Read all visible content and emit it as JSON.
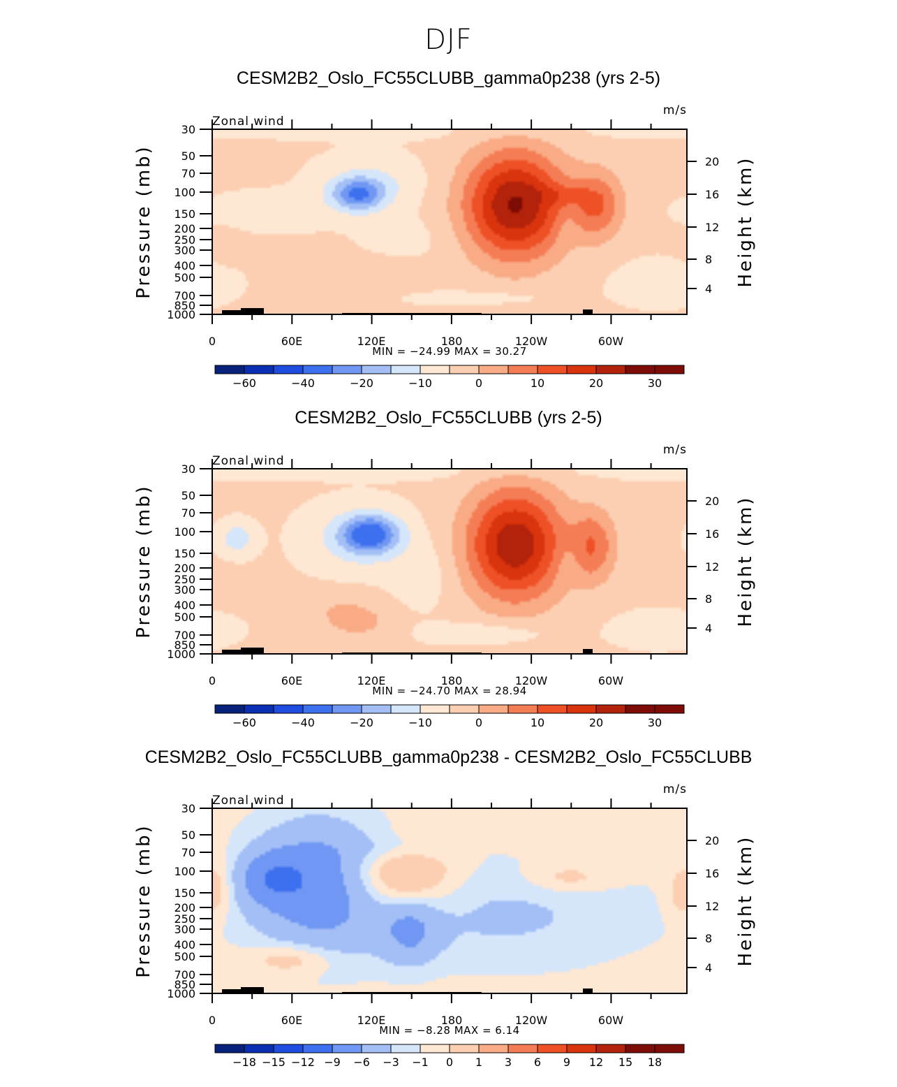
{
  "page_title": "DJF",
  "colors": {
    "neg": [
      "#08217a",
      "#0b2fb3",
      "#1f4de0",
      "#3d70ef",
      "#6f97f3",
      "#a3bff6",
      "#d5e6fb"
    ],
    "pos": [
      "#fee7d3",
      "#fccfb2",
      "#f9ab86",
      "#f57d55",
      "#ef5127",
      "#d9340d",
      "#b3220a",
      "#7e0c06"
    ]
  },
  "chart_data": [
    {
      "type": "heatmap",
      "title": "CESM2B2_Oslo_FC55CLUBB_gamma0p238 (yrs 2-5)",
      "left_label": "Zonal wind",
      "right_label": "m/s",
      "ylabel": "Pressure (mb)",
      "ylabel_right": "Height (km)",
      "yticks": [
        "30",
        "50",
        "70",
        "100",
        "150",
        "200",
        "250",
        "300",
        "400",
        "500",
        "700",
        "850",
        "1000"
      ],
      "yticks_right": [
        "20",
        "16",
        "12",
        "8",
        "4"
      ],
      "xticks": [
        "0",
        "60E",
        "120E",
        "180",
        "120W",
        "60W"
      ],
      "min": "-24.99",
      "max": "30.27",
      "stats_text": "MIN = −24.99   MAX =   30.27",
      "colorbar_labels": [
        "−60",
        "−40",
        "−20",
        "−10",
        "0",
        "10",
        "20",
        "30"
      ],
      "features": [
        {
          "lon": 150,
          "level": 7.0,
          "val": -2.0,
          "sx": 26,
          "sy": 1.0
        },
        {
          "lon": 45,
          "level": 5.3,
          "val": -3.5,
          "sx": 30,
          "sy": 0.8
        },
        {
          "lon": 110,
          "level": 4.2,
          "val": -18,
          "sx": 14,
          "sy": 0.75
        },
        {
          "lon": 120,
          "level": 3.5,
          "val": -6,
          "sx": 26,
          "sy": 1.2
        },
        {
          "lon": 200,
          "level": 11.0,
          "val": -4,
          "sx": 35,
          "sy": 0.3
        },
        {
          "lon": 230,
          "level": 4.9,
          "val": 30,
          "sx": 27,
          "sy": 2.5
        },
        {
          "lon": 293,
          "level": 4.9,
          "val": 14,
          "sx": 14,
          "sy": 1.6
        },
        {
          "lon": 110,
          "level": 9.8,
          "val": 3,
          "sx": 30,
          "sy": 0.8
        },
        {
          "lon": 10,
          "level": 7.6,
          "val": 2,
          "sx": 10,
          "sy": 0.7
        },
        {
          "lon": 265,
          "level": 4.2,
          "val": 5,
          "sx": 14,
          "sy": 0.5
        },
        {
          "lon": 270,
          "level": 6.2,
          "val": -3,
          "sx": 7,
          "sy": 1.0
        },
        {
          "lon": 340,
          "level": 10.0,
          "val": -3,
          "sx": 25,
          "sy": 1.0
        },
        {
          "lon": 180,
          "level": 0.1,
          "val": -1.5,
          "sx": 170,
          "sy": 0.4
        }
      ]
    },
    {
      "type": "heatmap",
      "title": "CESM2B2_Oslo_FC55CLUBB (yrs 2-5)",
      "left_label": "Zonal wind",
      "right_label": "m/s",
      "ylabel": "Pressure (mb)",
      "ylabel_right": "Height (km)",
      "yticks": [
        "30",
        "50",
        "70",
        "100",
        "150",
        "200",
        "250",
        "300",
        "400",
        "500",
        "700",
        "850",
        "1000"
      ],
      "yticks_right": [
        "20",
        "16",
        "12",
        "8",
        "4"
      ],
      "xticks": [
        "0",
        "60E",
        "120E",
        "180",
        "120W",
        "60W"
      ],
      "min": "-24.70",
      "max": "28.94",
      "stats_text": "MIN = −24.70   MAX =   28.94",
      "colorbar_labels": [
        "−60",
        "−40",
        "−20",
        "−10",
        "0",
        "10",
        "20",
        "30"
      ],
      "features": [
        {
          "lon": 160,
          "level": 6.8,
          "val": -3.5,
          "sx": 16,
          "sy": 1.5
        },
        {
          "lon": 120,
          "level": 4.2,
          "val": -20,
          "sx": 15,
          "sy": 0.85
        },
        {
          "lon": 110,
          "level": 4.5,
          "val": -8,
          "sx": 25,
          "sy": 1.4
        },
        {
          "lon": 18,
          "level": 4.5,
          "val": -9,
          "sx": 9,
          "sy": 0.7
        },
        {
          "lon": 180,
          "level": 0.1,
          "val": -2,
          "sx": 170,
          "sy": 0.4
        },
        {
          "lon": 230,
          "level": 4.9,
          "val": 28.5,
          "sx": 26,
          "sy": 2.6
        },
        {
          "lon": 290,
          "level": 5.0,
          "val": 13,
          "sx": 12,
          "sy": 1.7
        },
        {
          "lon": 110,
          "level": 10.0,
          "val": 6,
          "sx": 18,
          "sy": 0.8
        },
        {
          "lon": 90,
          "level": 9.0,
          "val": 3,
          "sx": 22,
          "sy": 0.8
        },
        {
          "lon": 5,
          "level": 7.5,
          "val": 1.5,
          "sx": 8,
          "sy": 0.8
        },
        {
          "lon": 270,
          "level": 6.0,
          "val": -2.8,
          "sx": 7,
          "sy": 1.0
        },
        {
          "lon": 210,
          "level": 10.7,
          "val": -5,
          "sx": 30,
          "sy": 0.5
        },
        {
          "lon": 340,
          "level": 10.5,
          "val": -3,
          "sx": 25,
          "sy": 0.8
        }
      ]
    },
    {
      "type": "heatmap",
      "title": "CESM2B2_Oslo_FC55CLUBB_gamma0p238 - CESM2B2_Oslo_FC55CLUBB",
      "left_label": "Zonal wind",
      "right_label": "m/s",
      "ylabel": "Pressure (mb)",
      "ylabel_right": "Height (km)",
      "yticks": [
        "30",
        "50",
        "70",
        "100",
        "150",
        "200",
        "250",
        "300",
        "400",
        "500",
        "700",
        "850",
        "1000"
      ],
      "yticks_right": [
        "20",
        "16",
        "12",
        "8",
        "4"
      ],
      "xticks": [
        "0",
        "60E",
        "120E",
        "180",
        "120W",
        "60W"
      ],
      "min": "-8.28",
      "max": "6.14",
      "stats_text": "MIN =    −8.28   MAX =    6.14",
      "colorbar_labels": [
        "−18",
        "−15",
        "−12",
        "−9",
        "−6",
        "−3",
        "−1",
        "0",
        "1",
        "3",
        "6",
        "9",
        "12",
        "15",
        "18"
      ],
      "features": [
        {
          "lon": 80,
          "level": 5.0,
          "val": -5,
          "sx": 36,
          "sy": 3.0
        },
        {
          "lon": 45,
          "level": 4.5,
          "val": -4,
          "sx": 18,
          "sy": 1.2
        },
        {
          "lon": 150,
          "level": 8.0,
          "val": -3,
          "sx": 15,
          "sy": 1.5
        },
        {
          "lon": 220,
          "level": 7.0,
          "val": -1.7,
          "sx": 80,
          "sy": 2.5
        },
        {
          "lon": 140,
          "level": 4.5,
          "val": 3.5,
          "sx": 28,
          "sy": 1.5
        },
        {
          "lon": 270,
          "level": 4.5,
          "val": 1.5,
          "sx": 22,
          "sy": 0.7
        },
        {
          "lon": 60,
          "level": 9.8,
          "val": 2.0,
          "sx": 22,
          "sy": 0.7
        },
        {
          "lon": 5,
          "level": 5.0,
          "val": 1.2,
          "sx": 8,
          "sy": 1.5
        },
        {
          "lon": 355,
          "level": 5.5,
          "val": 1.2,
          "sx": 8,
          "sy": 1.2
        },
        {
          "lon": 140,
          "level": 2.5,
          "val": -0.8,
          "sx": 40,
          "sy": 0.6
        }
      ]
    }
  ]
}
